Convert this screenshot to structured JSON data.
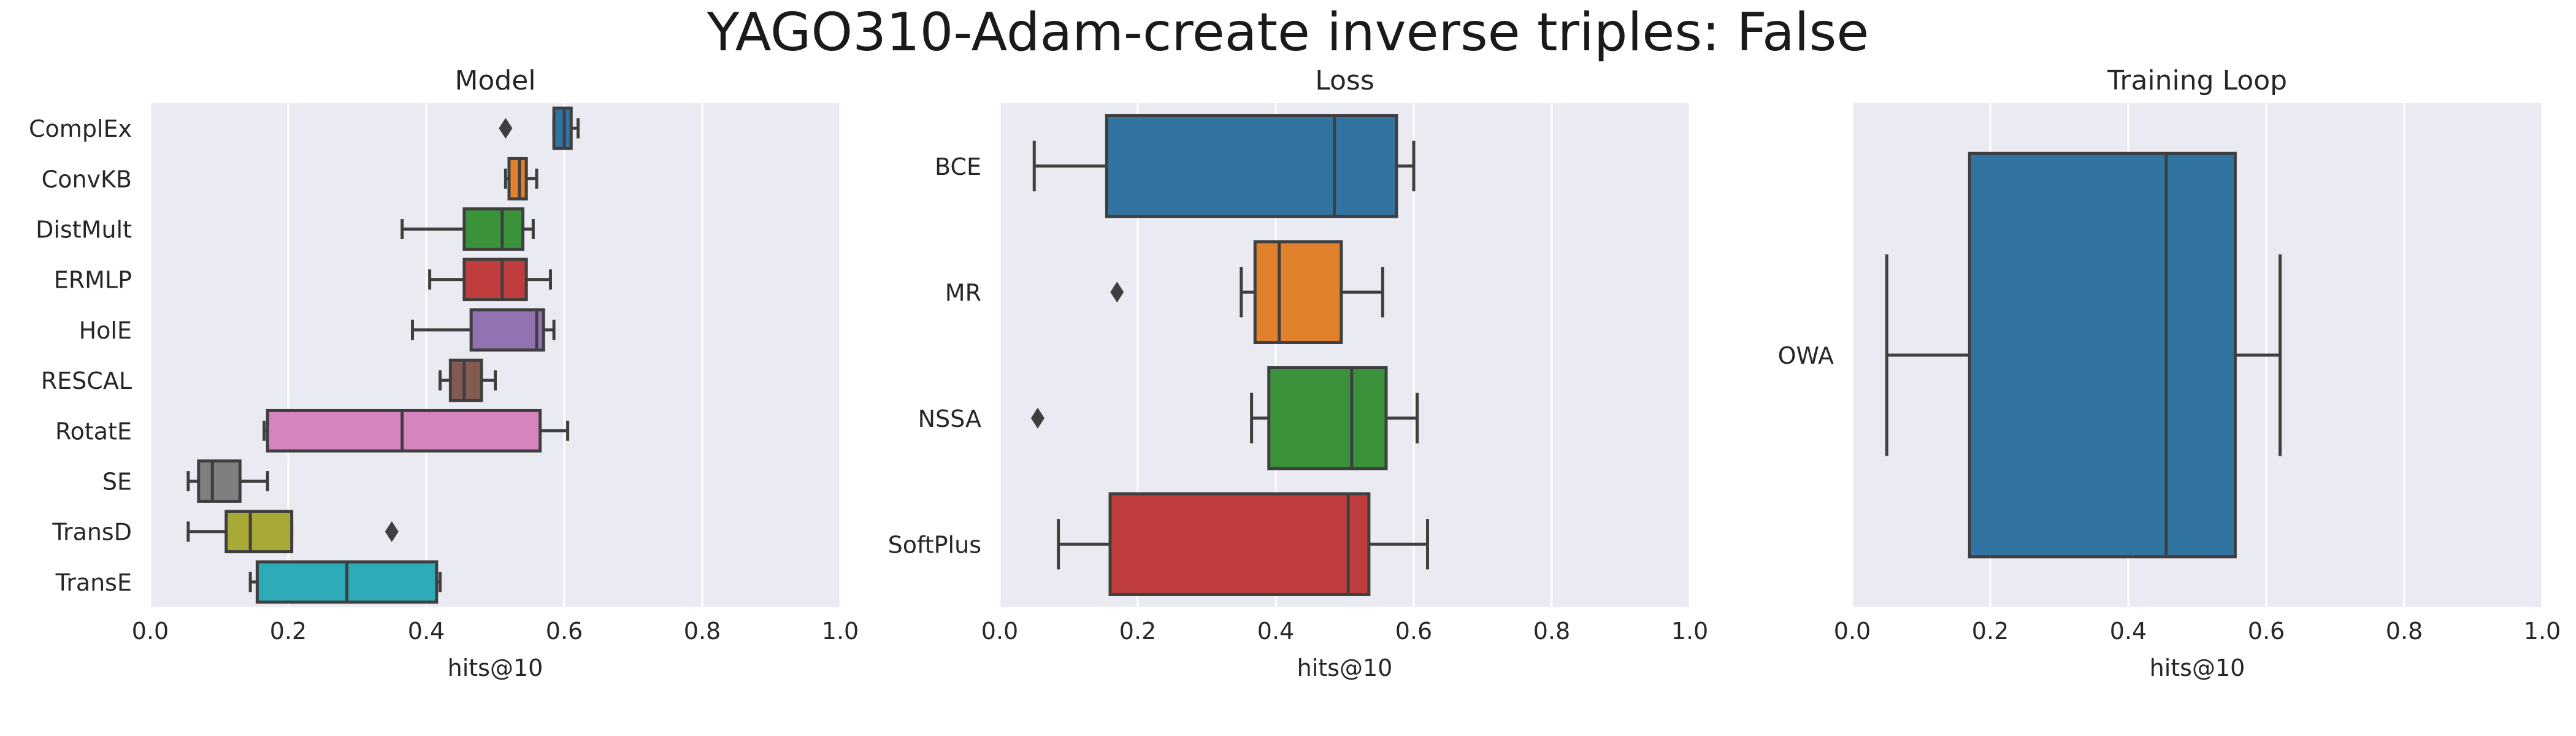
{
  "figure_title": "YAGO310-Adam-create inverse triples: False",
  "colors": {
    "panel_bg": "#eaeaf2",
    "grid": "#ffffff",
    "line": "#3f3f3f"
  },
  "chart_data": [
    {
      "type": "box",
      "orientation": "horizontal",
      "title": "Model",
      "xlabel": "hits@10",
      "xlim": [
        0.0,
        1.0
      ],
      "xticks": [
        0.0,
        0.2,
        0.4,
        0.6,
        0.8,
        1.0
      ],
      "xtick_labels": [
        "0.0",
        "0.2",
        "0.4",
        "0.6",
        "0.8",
        "1.0"
      ],
      "categories": [
        "ComplEx",
        "ConvKB",
        "DistMult",
        "ERMLP",
        "HolE",
        "RESCAL",
        "RotatE",
        "SE",
        "TransD",
        "TransE"
      ],
      "colors": [
        "#3274a1",
        "#e1812c",
        "#3a923a",
        "#c03d3e",
        "#9372b2",
        "#845b53",
        "#d684bd",
        "#7f7f7f",
        "#a9aa35",
        "#2eabb8"
      ],
      "boxes": [
        {
          "whislo": 0.585,
          "q1": 0.585,
          "med": 0.6,
          "q3": 0.61,
          "whishi": 0.62,
          "fliers": [
            0.515
          ]
        },
        {
          "whislo": 0.515,
          "q1": 0.52,
          "med": 0.535,
          "q3": 0.545,
          "whishi": 0.56,
          "fliers": []
        },
        {
          "whislo": 0.365,
          "q1": 0.455,
          "med": 0.51,
          "q3": 0.54,
          "whishi": 0.555,
          "fliers": []
        },
        {
          "whislo": 0.405,
          "q1": 0.455,
          "med": 0.51,
          "q3": 0.545,
          "whishi": 0.58,
          "fliers": []
        },
        {
          "whislo": 0.38,
          "q1": 0.465,
          "med": 0.56,
          "q3": 0.57,
          "whishi": 0.585,
          "fliers": []
        },
        {
          "whislo": 0.42,
          "q1": 0.435,
          "med": 0.455,
          "q3": 0.48,
          "whishi": 0.5,
          "fliers": []
        },
        {
          "whislo": 0.165,
          "q1": 0.17,
          "med": 0.365,
          "q3": 0.565,
          "whishi": 0.605,
          "fliers": []
        },
        {
          "whislo": 0.055,
          "q1": 0.07,
          "med": 0.09,
          "q3": 0.13,
          "whishi": 0.17,
          "fliers": []
        },
        {
          "whislo": 0.055,
          "q1": 0.11,
          "med": 0.145,
          "q3": 0.205,
          "whishi": 0.205,
          "fliers": [
            0.35
          ]
        },
        {
          "whislo": 0.145,
          "q1": 0.155,
          "med": 0.285,
          "q3": 0.415,
          "whishi": 0.42,
          "fliers": []
        }
      ]
    },
    {
      "type": "box",
      "orientation": "horizontal",
      "title": "Loss",
      "xlabel": "hits@10",
      "xlim": [
        0.0,
        1.0
      ],
      "xticks": [
        0.0,
        0.2,
        0.4,
        0.6,
        0.8,
        1.0
      ],
      "xtick_labels": [
        "0.0",
        "0.2",
        "0.4",
        "0.6",
        "0.8",
        "1.0"
      ],
      "categories": [
        "BCE",
        "MR",
        "NSSA",
        "SoftPlus"
      ],
      "colors": [
        "#3274a1",
        "#e1812c",
        "#3a923a",
        "#c03d3e"
      ],
      "boxes": [
        {
          "whislo": 0.05,
          "q1": 0.155,
          "med": 0.485,
          "q3": 0.575,
          "whishi": 0.6,
          "fliers": []
        },
        {
          "whislo": 0.35,
          "q1": 0.37,
          "med": 0.405,
          "q3": 0.495,
          "whishi": 0.555,
          "fliers": [
            0.17
          ]
        },
        {
          "whislo": 0.365,
          "q1": 0.39,
          "med": 0.51,
          "q3": 0.56,
          "whishi": 0.605,
          "fliers": [
            0.055
          ]
        },
        {
          "whislo": 0.085,
          "q1": 0.16,
          "med": 0.505,
          "q3": 0.535,
          "whishi": 0.62,
          "fliers": []
        }
      ]
    },
    {
      "type": "box",
      "orientation": "horizontal",
      "title": "Training Loop",
      "xlabel": "hits@10",
      "xlim": [
        0.0,
        1.0
      ],
      "xticks": [
        0.0,
        0.2,
        0.4,
        0.6,
        0.8,
        1.0
      ],
      "xtick_labels": [
        "0.0",
        "0.2",
        "0.4",
        "0.6",
        "0.8",
        "1.0"
      ],
      "categories": [
        "OWA"
      ],
      "colors": [
        "#3274a1"
      ],
      "boxes": [
        {
          "whislo": 0.05,
          "q1": 0.17,
          "med": 0.455,
          "q3": 0.555,
          "whishi": 0.62,
          "fliers": []
        }
      ]
    }
  ]
}
